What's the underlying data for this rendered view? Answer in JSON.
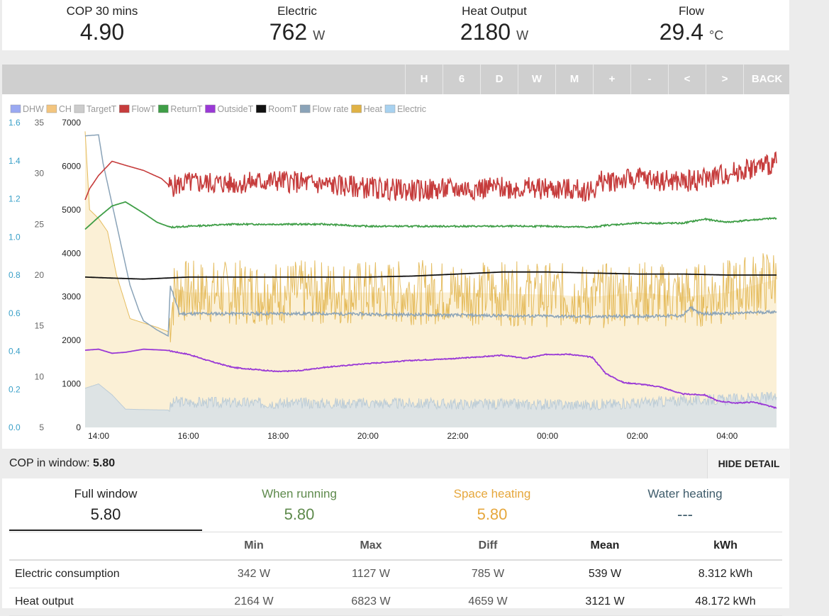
{
  "stats": [
    {
      "title": "COP 30 mins",
      "value": "4.90",
      "unit": ""
    },
    {
      "title": "Electric",
      "value": "762",
      "unit": "W"
    },
    {
      "title": "Heat Output",
      "value": "2180",
      "unit": "W"
    },
    {
      "title": "Flow",
      "value": "29.4",
      "unit": "°C"
    }
  ],
  "toolbar": {
    "buttons": [
      "H",
      "6",
      "D",
      "W",
      "M",
      "+",
      "-",
      "<",
      ">",
      "BACK"
    ]
  },
  "chart_data": {
    "type": "line",
    "legend_position": "top-left",
    "legend": [
      {
        "name": "DHW",
        "color": "#9aa9f2"
      },
      {
        "name": "CH",
        "color": "#f3c57e"
      },
      {
        "name": "TargetT",
        "color": "#cccccc"
      },
      {
        "name": "FlowT",
        "color": "#c63c3c"
      },
      {
        "name": "ReturnT",
        "color": "#3f9e47"
      },
      {
        "name": "OutsideT",
        "color": "#9a39d6"
      },
      {
        "name": "RoomT",
        "color": "#111111"
      },
      {
        "name": "Flow rate",
        "color": "#8aa3b8"
      },
      {
        "name": "Heat",
        "color": "#e0b245"
      },
      {
        "name": "Electric",
        "color": "#a8d2f0"
      }
    ],
    "axes": {
      "cop": {
        "range": [
          0,
          1.6
        ],
        "ticks": [
          "0.0",
          "0.2",
          "0.4",
          "0.6",
          "0.8",
          "1.0",
          "1.2",
          "1.4",
          "1.6"
        ]
      },
      "temp": {
        "range": [
          5,
          35
        ],
        "ticks": [
          "5",
          "10",
          "15",
          "20",
          "25",
          "30",
          "35"
        ]
      },
      "power": {
        "range": [
          0,
          7000
        ],
        "ticks": [
          "0",
          "1000",
          "2000",
          "3000",
          "4000",
          "5000",
          "6000",
          "7000"
        ]
      }
    },
    "x_range": [
      13.7,
      29.1
    ],
    "x_ticks": [
      {
        "x": 14,
        "label": "14:00"
      },
      {
        "x": 16,
        "label": "16:00"
      },
      {
        "x": 18,
        "label": "18:00"
      },
      {
        "x": 20,
        "label": "20:00"
      },
      {
        "x": 22,
        "label": "22:00"
      },
      {
        "x": 24,
        "label": "00:00"
      },
      {
        "x": 26,
        "label": "02:00"
      },
      {
        "x": 28,
        "label": "04:00"
      }
    ],
    "series": [
      {
        "name": "FlowT",
        "axis": "temp",
        "points": [
          [
            13.7,
            27.4
          ],
          [
            13.8,
            28.5
          ],
          [
            14.0,
            29.8
          ],
          [
            14.3,
            31.2
          ],
          [
            14.6,
            30.8
          ],
          [
            15.0,
            30.3
          ],
          [
            15.4,
            29.5
          ],
          [
            15.6,
            28.7
          ],
          [
            16.0,
            29.1
          ],
          [
            17.0,
            29.0
          ],
          [
            18.0,
            29.3
          ],
          [
            19.0,
            28.9
          ],
          [
            20.0,
            28.6
          ],
          [
            21.0,
            28.3
          ],
          [
            22.0,
            28.5
          ],
          [
            23.0,
            28.6
          ],
          [
            24.0,
            28.5
          ],
          [
            25.0,
            28.3
          ],
          [
            25.2,
            29.2
          ],
          [
            26.0,
            29.5
          ],
          [
            27.0,
            29.2
          ],
          [
            27.6,
            29.6
          ],
          [
            28.0,
            30.0
          ],
          [
            28.5,
            30.5
          ],
          [
            29.1,
            31.0
          ]
        ]
      },
      {
        "name": "ReturnT",
        "axis": "temp",
        "points": [
          [
            13.7,
            24.5
          ],
          [
            14.0,
            25.7
          ],
          [
            14.3,
            26.8
          ],
          [
            14.6,
            27.2
          ],
          [
            15.0,
            26.1
          ],
          [
            15.3,
            25.2
          ],
          [
            15.6,
            24.7
          ],
          [
            16.0,
            24.8
          ],
          [
            17.0,
            25.0
          ],
          [
            18.0,
            25.0
          ],
          [
            19.0,
            25.0
          ],
          [
            20.0,
            24.8
          ],
          [
            21.0,
            24.8
          ],
          [
            22.0,
            24.8
          ],
          [
            23.0,
            24.8
          ],
          [
            24.0,
            24.8
          ],
          [
            25.0,
            24.7
          ],
          [
            25.3,
            24.9
          ],
          [
            26.0,
            25.1
          ],
          [
            27.0,
            25.1
          ],
          [
            27.5,
            25.5
          ],
          [
            28.0,
            25.2
          ],
          [
            28.5,
            25.4
          ],
          [
            29.1,
            25.6
          ]
        ]
      },
      {
        "name": "RoomT",
        "axis": "temp",
        "points": [
          [
            13.7,
            19.8
          ],
          [
            14.3,
            19.7
          ],
          [
            15.0,
            19.6
          ],
          [
            15.5,
            19.7
          ],
          [
            16.0,
            19.8
          ],
          [
            18.0,
            19.8
          ],
          [
            20.0,
            19.8
          ],
          [
            21.0,
            19.9
          ],
          [
            22.0,
            20.1
          ],
          [
            23.0,
            20.3
          ],
          [
            24.0,
            20.3
          ],
          [
            25.0,
            20.2
          ],
          [
            26.0,
            20.1
          ],
          [
            27.0,
            20.1
          ],
          [
            28.0,
            20.0
          ],
          [
            29.1,
            20.0
          ]
        ]
      },
      {
        "name": "OutsideT",
        "axis": "temp",
        "points": [
          [
            13.7,
            12.6
          ],
          [
            14.0,
            12.7
          ],
          [
            14.3,
            12.3
          ],
          [
            14.6,
            12.4
          ],
          [
            15.0,
            12.7
          ],
          [
            15.5,
            12.6
          ],
          [
            16.0,
            12.2
          ],
          [
            16.5,
            11.5
          ],
          [
            17.0,
            10.9
          ],
          [
            18.0,
            10.5
          ],
          [
            18.5,
            10.6
          ],
          [
            19.0,
            10.9
          ],
          [
            20.0,
            11.3
          ],
          [
            21.0,
            11.6
          ],
          [
            22.0,
            11.8
          ],
          [
            23.0,
            12.1
          ],
          [
            23.5,
            11.8
          ],
          [
            24.0,
            12.2
          ],
          [
            24.5,
            12.2
          ],
          [
            25.0,
            11.9
          ],
          [
            25.3,
            10.3
          ],
          [
            25.7,
            9.4
          ],
          [
            26.0,
            9.3
          ],
          [
            26.5,
            9.0
          ],
          [
            27.0,
            8.3
          ],
          [
            27.5,
            8.2
          ],
          [
            27.8,
            7.6
          ],
          [
            28.2,
            7.4
          ],
          [
            28.6,
            7.5
          ],
          [
            29.1,
            6.9
          ]
        ]
      },
      {
        "name": "Flow rate",
        "axis": "temp",
        "points": [
          [
            13.7,
            33.7
          ],
          [
            14.0,
            33.8
          ],
          [
            14.1,
            31.0
          ],
          [
            14.3,
            27.0
          ],
          [
            14.5,
            23.0
          ],
          [
            14.7,
            19.0
          ],
          [
            14.9,
            16.5
          ],
          [
            15.0,
            15.5
          ],
          [
            15.3,
            14.6
          ],
          [
            15.55,
            14.0
          ],
          [
            15.6,
            19.0
          ],
          [
            15.8,
            16.2
          ],
          [
            17.0,
            16.2
          ],
          [
            19.0,
            16.2
          ],
          [
            21.0,
            16.1
          ],
          [
            23.0,
            16.0
          ],
          [
            25.0,
            15.9
          ],
          [
            27.0,
            16.0
          ],
          [
            27.2,
            16.8
          ],
          [
            27.4,
            16.2
          ],
          [
            28.0,
            16.2
          ],
          [
            29.1,
            16.4
          ]
        ]
      },
      {
        "name": "Heat",
        "axis": "power",
        "points": [
          [
            13.7,
            6800
          ],
          [
            13.8,
            5000
          ],
          [
            14.0,
            4800
          ],
          [
            14.2,
            4500
          ],
          [
            14.4,
            3500
          ],
          [
            14.7,
            2500
          ],
          [
            15.0,
            2400
          ],
          [
            15.3,
            2300
          ],
          [
            15.55,
            2200
          ],
          [
            15.7,
            3200
          ],
          [
            16.0,
            3100
          ],
          [
            18.0,
            3100
          ],
          [
            20.0,
            3100
          ],
          [
            22.0,
            3100
          ],
          [
            24.0,
            3050
          ],
          [
            25.0,
            3000
          ],
          [
            26.0,
            3100
          ],
          [
            27.0,
            3000
          ],
          [
            28.0,
            3100
          ],
          [
            29.1,
            3400
          ]
        ]
      },
      {
        "name": "Electric",
        "axis": "power",
        "points": [
          [
            13.7,
            900
          ],
          [
            14.0,
            1000
          ],
          [
            14.3,
            750
          ],
          [
            14.6,
            420
          ],
          [
            15.0,
            410
          ],
          [
            15.55,
            400
          ],
          [
            15.7,
            600
          ],
          [
            16.0,
            580
          ],
          [
            18.0,
            560
          ],
          [
            20.0,
            560
          ],
          [
            22.0,
            540
          ],
          [
            24.0,
            530
          ],
          [
            25.0,
            520
          ],
          [
            26.0,
            560
          ],
          [
            27.0,
            620
          ],
          [
            28.0,
            640
          ],
          [
            29.1,
            700
          ]
        ]
      }
    ]
  },
  "cop_window": {
    "label": "COP in window:",
    "value": "5.80",
    "hide_label": "HIDE DETAIL"
  },
  "cop_tabs": [
    {
      "name": "Full window",
      "value": "5.80",
      "color": "#222222"
    },
    {
      "name": "When running",
      "value": "5.80",
      "color": "#5e8a4c"
    },
    {
      "name": "Space heating",
      "value": "5.80",
      "color": "#e6a73c"
    },
    {
      "name": "Water heating",
      "value": "---",
      "color": "#3f5c6b"
    }
  ],
  "table": {
    "headers": [
      "",
      "Min",
      "Max",
      "Diff",
      "Mean",
      "kWh"
    ],
    "rows": [
      [
        "Electric consumption",
        "342 W",
        "1127 W",
        "785 W",
        "539 W",
        "8.312 kWh"
      ],
      [
        "Heat output",
        "2164 W",
        "6823 W",
        "4659 W",
        "3121 W",
        "48.172 kWh"
      ]
    ]
  }
}
